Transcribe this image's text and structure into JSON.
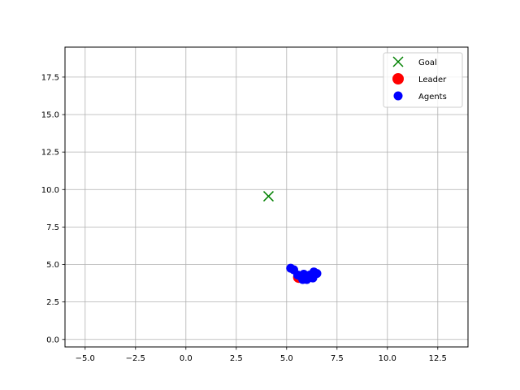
{
  "chart_data": {
    "type": "scatter",
    "title": "",
    "xlabel": "",
    "ylabel": "",
    "xlim": [
      -6.0,
      14.0
    ],
    "ylim": [
      -0.5,
      19.5
    ],
    "xticks": [
      -5.0,
      -2.5,
      0.0,
      2.5,
      5.0,
      7.5,
      10.0,
      12.5
    ],
    "xtick_labels": [
      "−5.0",
      "−2.5",
      "0.0",
      "2.5",
      "5.0",
      "7.5",
      "10.0",
      "12.5"
    ],
    "yticks": [
      0.0,
      2.5,
      5.0,
      7.5,
      10.0,
      12.5,
      15.0,
      17.5
    ],
    "ytick_labels": [
      "0.0",
      "2.5",
      "5.0",
      "7.5",
      "10.0",
      "12.5",
      "15.0",
      "17.5"
    ],
    "grid": true,
    "legend_position": "top-right",
    "series": [
      {
        "name": "Goal",
        "marker": "x",
        "color": "#008000",
        "points": [
          [
            4.1,
            9.55
          ]
        ]
      },
      {
        "name": "Leader",
        "marker": "o-large",
        "color": "#ff0000",
        "points": [
          [
            5.6,
            4.15
          ]
        ]
      },
      {
        "name": "Agents",
        "marker": "o",
        "color": "#0000ff",
        "points": [
          [
            5.2,
            4.75
          ],
          [
            5.35,
            4.65
          ],
          [
            5.55,
            4.3
          ],
          [
            5.75,
            4.15
          ],
          [
            5.85,
            4.35
          ],
          [
            5.95,
            4.05
          ],
          [
            6.05,
            4.2
          ],
          [
            6.15,
            4.3
          ],
          [
            6.3,
            4.1
          ],
          [
            6.35,
            4.5
          ],
          [
            6.5,
            4.4
          ],
          [
            5.8,
            4.0
          ],
          [
            6.0,
            4.0
          ]
        ]
      }
    ]
  }
}
